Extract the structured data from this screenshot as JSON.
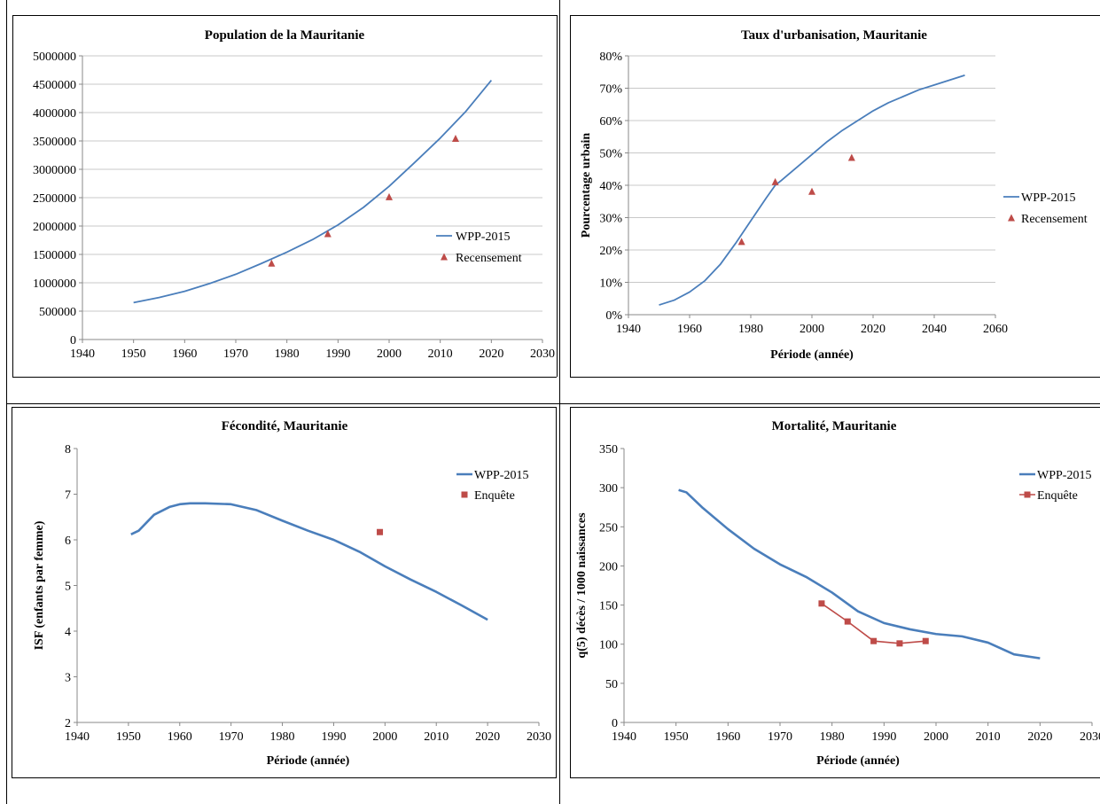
{
  "chart_data": [
    {
      "type": "line",
      "title": "Population de la Mauritanie",
      "xlabel": "",
      "ylabel": "",
      "xlim": [
        1940,
        2030
      ],
      "ylim": [
        0,
        5000000
      ],
      "x_ticks": [
        "1940",
        "1950",
        "1960",
        "1970",
        "1980",
        "1990",
        "2000",
        "2010",
        "2020",
        "2030"
      ],
      "y_ticks": [
        "0",
        "500000",
        "1000000",
        "1500000",
        "2000000",
        "2500000",
        "3000000",
        "3500000",
        "4000000",
        "4500000",
        "5000000"
      ],
      "grid": "horizontal",
      "legend": "right",
      "series": [
        {
          "name": "WPP-2015",
          "kind": "line",
          "color": "#4a7ebb",
          "x": [
            1950,
            1955,
            1960,
            1965,
            1970,
            1975,
            1980,
            1985,
            1990,
            1995,
            2000,
            2005,
            2010,
            2015,
            2020
          ],
          "y": [
            650000,
            740000,
            850000,
            990000,
            1150000,
            1340000,
            1540000,
            1760000,
            2020000,
            2330000,
            2700000,
            3120000,
            3550000,
            4020000,
            4570000
          ]
        },
        {
          "name": "Recensement",
          "kind": "marker",
          "marker": "triangle",
          "color": "#be4b48",
          "x": [
            1977,
            1988,
            2000,
            2013
          ],
          "y": [
            1340000,
            1860000,
            2510000,
            3540000
          ]
        }
      ]
    },
    {
      "type": "line",
      "title": "Taux d'urbanisation, Mauritanie",
      "xlabel": "Période (année)",
      "ylabel": "Pourcentage urbain",
      "xlim": [
        1940,
        2060
      ],
      "ylim": [
        0,
        80
      ],
      "x_ticks": [
        "1940",
        "1960",
        "1980",
        "2000",
        "2020",
        "2040",
        "2060"
      ],
      "y_ticks": [
        "0%",
        "10%",
        "20%",
        "30%",
        "40%",
        "50%",
        "60%",
        "70%",
        "80%"
      ],
      "grid": "horizontal",
      "legend": "right",
      "series": [
        {
          "name": "WPP-2015",
          "kind": "line",
          "color": "#4a7ebb",
          "x": [
            1950,
            1955,
            1960,
            1965,
            1970,
            1975,
            1980,
            1985,
            1988,
            1990,
            1995,
            2000,
            2005,
            2010,
            2015,
            2020,
            2025,
            2030,
            2035,
            2040,
            2045,
            2050
          ],
          "y": [
            3,
            4.5,
            7,
            10.5,
            15.5,
            22,
            29,
            36,
            40,
            41.5,
            45.5,
            49.5,
            53.5,
            57,
            60,
            63,
            65.5,
            67.5,
            69.5,
            71,
            72.5,
            74
          ]
        },
        {
          "name": "Recensement",
          "kind": "marker",
          "marker": "triangle",
          "color": "#be4b48",
          "x": [
            1977,
            1988,
            2000,
            2013
          ],
          "y": [
            22.5,
            41,
            38,
            48.5
          ]
        }
      ]
    },
    {
      "type": "line",
      "title": "Fécondité, Mauritanie",
      "xlabel": "Période (année)",
      "ylabel": "ISF (enfants par femme)",
      "xlim": [
        1940,
        2030
      ],
      "ylim": [
        2,
        8
      ],
      "x_ticks": [
        "1940",
        "1950",
        "1960",
        "1970",
        "1980",
        "1990",
        "2000",
        "2010",
        "2020",
        "2030"
      ],
      "y_ticks": [
        "2",
        "3",
        "4",
        "5",
        "6",
        "7",
        "8"
      ],
      "grid": "none",
      "legend": "top-right",
      "series": [
        {
          "name": "WPP-2015",
          "kind": "line",
          "color": "#4a7ebb",
          "x": [
            1950.5,
            1952,
            1955,
            1958,
            1960,
            1962,
            1965,
            1970,
            1975,
            1980,
            1985,
            1990,
            1995,
            2000,
            2005,
            2010,
            2015,
            2020
          ],
          "y": [
            6.12,
            6.2,
            6.55,
            6.72,
            6.78,
            6.8,
            6.8,
            6.78,
            6.65,
            6.42,
            6.2,
            6.0,
            5.74,
            5.42,
            5.13,
            4.86,
            4.56,
            4.25
          ]
        },
        {
          "name": "Enquête",
          "kind": "marker",
          "marker": "square",
          "color": "#be4b48",
          "x": [
            1999
          ],
          "y": [
            6.17
          ]
        }
      ]
    },
    {
      "type": "line",
      "title": "Mortalité, Mauritanie",
      "xlabel": "Période (année)",
      "ylabel": "q(5) décès / 1000 naissances",
      "xlim": [
        1940,
        2030
      ],
      "ylim": [
        0,
        350
      ],
      "x_ticks": [
        "1940",
        "1950",
        "1960",
        "1970",
        "1980",
        "1990",
        "2000",
        "2010",
        "2020",
        "2030"
      ],
      "y_ticks": [
        "0",
        "50",
        "100",
        "150",
        "200",
        "250",
        "300",
        "350"
      ],
      "grid": "none",
      "legend": "top-right",
      "series": [
        {
          "name": "WPP-2015",
          "kind": "line",
          "color": "#4a7ebb",
          "x": [
            1950.5,
            1952,
            1955,
            1960,
            1965,
            1970,
            1975,
            1980,
            1985,
            1990,
            1995,
            2000,
            2005,
            2010,
            2015,
            2020
          ],
          "y": [
            297,
            294,
            275,
            247,
            222,
            202,
            186,
            166,
            142,
            127,
            119,
            113,
            110,
            102,
            87,
            82
          ]
        },
        {
          "name": "Enquête",
          "kind": "line-marker",
          "marker": "square",
          "color": "#be4b48",
          "x": [
            1978,
            1983,
            1988,
            1993,
            1998
          ],
          "y": [
            152,
            129,
            104,
            101,
            104
          ]
        }
      ]
    }
  ]
}
